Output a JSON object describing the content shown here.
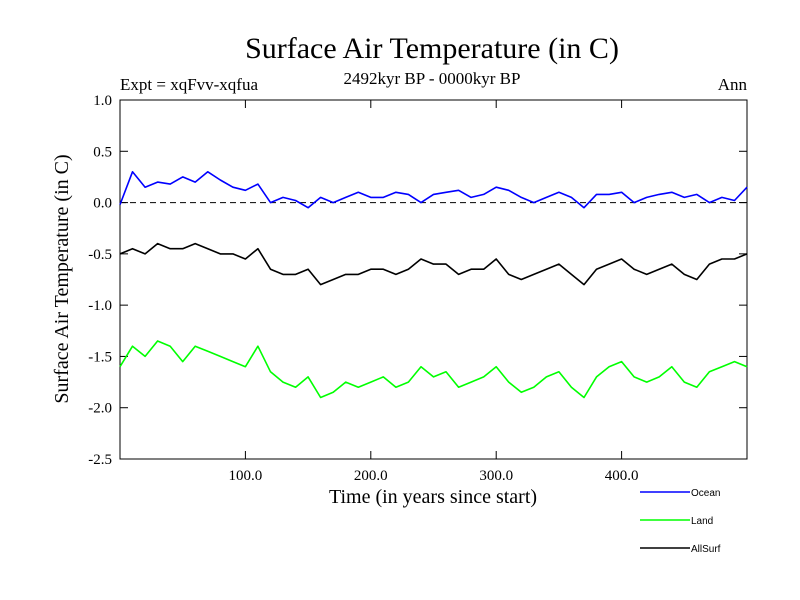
{
  "chart_data": {
    "type": "line",
    "title": "Surface Air Temperature (in C)",
    "subtitle": "2492kyr BP - 0000kyr BP",
    "left_label": "Expt = xqFvv-xqfua",
    "right_label": "Ann",
    "xlabel": "Time (in years since start)",
    "ylabel": "Surface Air Temperature (in C)",
    "xlim": [
      0,
      500
    ],
    "ylim": [
      -2.5,
      1.0
    ],
    "xticks": [
      100,
      200,
      300,
      400
    ],
    "xtick_labels": [
      "100.0",
      "200.0",
      "300.0",
      "400.0"
    ],
    "yticks": [
      1.0,
      0.5,
      0.0,
      -0.5,
      -1.0,
      -1.5,
      -2.0,
      -2.5
    ],
    "ytick_labels": [
      "1.0",
      "0.5",
      "0.0",
      "-0.5",
      "-1.0",
      "-1.5",
      "-2.0",
      "-2.5"
    ],
    "zero_line": 0.0,
    "legend_position": "bottom-right",
    "series": [
      {
        "name": "Ocean",
        "color": "#0000ff",
        "x": [
          0,
          10,
          20,
          30,
          40,
          50,
          60,
          70,
          80,
          90,
          100,
          110,
          120,
          130,
          140,
          150,
          160,
          170,
          180,
          190,
          200,
          210,
          220,
          230,
          240,
          250,
          260,
          270,
          280,
          290,
          300,
          310,
          320,
          330,
          340,
          350,
          360,
          370,
          380,
          390,
          400,
          410,
          420,
          430,
          440,
          450,
          460,
          470,
          480,
          490,
          500
        ],
        "values": [
          -0.02,
          0.3,
          0.15,
          0.2,
          0.18,
          0.25,
          0.2,
          0.3,
          0.22,
          0.15,
          0.12,
          0.18,
          0.0,
          0.05,
          0.02,
          -0.05,
          0.05,
          0.0,
          0.05,
          0.1,
          0.05,
          0.05,
          0.1,
          0.08,
          0.0,
          0.08,
          0.1,
          0.12,
          0.05,
          0.08,
          0.15,
          0.12,
          0.05,
          0.0,
          0.05,
          0.1,
          0.05,
          -0.05,
          0.08,
          0.08,
          0.1,
          0.0,
          0.05,
          0.08,
          0.1,
          0.05,
          0.08,
          0.0,
          0.05,
          0.02,
          0.15
        ]
      },
      {
        "name": "Land",
        "color": "#00ff00",
        "x": [
          0,
          10,
          20,
          30,
          40,
          50,
          60,
          70,
          80,
          90,
          100,
          110,
          120,
          130,
          140,
          150,
          160,
          170,
          180,
          190,
          200,
          210,
          220,
          230,
          240,
          250,
          260,
          270,
          280,
          290,
          300,
          310,
          320,
          330,
          340,
          350,
          360,
          370,
          380,
          390,
          400,
          410,
          420,
          430,
          440,
          450,
          460,
          470,
          480,
          490,
          500
        ],
        "values": [
          -1.6,
          -1.4,
          -1.5,
          -1.35,
          -1.4,
          -1.55,
          -1.4,
          -1.45,
          -1.5,
          -1.55,
          -1.6,
          -1.4,
          -1.65,
          -1.75,
          -1.8,
          -1.7,
          -1.9,
          -1.85,
          -1.75,
          -1.8,
          -1.75,
          -1.7,
          -1.8,
          -1.75,
          -1.6,
          -1.7,
          -1.65,
          -1.8,
          -1.75,
          -1.7,
          -1.6,
          -1.75,
          -1.85,
          -1.8,
          -1.7,
          -1.65,
          -1.8,
          -1.9,
          -1.7,
          -1.6,
          -1.55,
          -1.7,
          -1.75,
          -1.7,
          -1.6,
          -1.75,
          -1.8,
          -1.65,
          -1.6,
          -1.55,
          -1.6
        ]
      },
      {
        "name": "AllSurf",
        "color": "#000000",
        "x": [
          0,
          10,
          20,
          30,
          40,
          50,
          60,
          70,
          80,
          90,
          100,
          110,
          120,
          130,
          140,
          150,
          160,
          170,
          180,
          190,
          200,
          210,
          220,
          230,
          240,
          250,
          260,
          270,
          280,
          290,
          300,
          310,
          320,
          330,
          340,
          350,
          360,
          370,
          380,
          390,
          400,
          410,
          420,
          430,
          440,
          450,
          460,
          470,
          480,
          490,
          500
        ],
        "values": [
          -0.5,
          -0.45,
          -0.5,
          -0.4,
          -0.45,
          -0.45,
          -0.4,
          -0.45,
          -0.5,
          -0.5,
          -0.55,
          -0.45,
          -0.65,
          -0.7,
          -0.7,
          -0.65,
          -0.8,
          -0.75,
          -0.7,
          -0.7,
          -0.65,
          -0.65,
          -0.7,
          -0.65,
          -0.55,
          -0.6,
          -0.6,
          -0.7,
          -0.65,
          -0.65,
          -0.55,
          -0.7,
          -0.75,
          -0.7,
          -0.65,
          -0.6,
          -0.7,
          -0.8,
          -0.65,
          -0.6,
          -0.55,
          -0.65,
          -0.7,
          -0.65,
          -0.6,
          -0.7,
          -0.75,
          -0.6,
          -0.55,
          -0.55,
          -0.5
        ]
      }
    ]
  }
}
